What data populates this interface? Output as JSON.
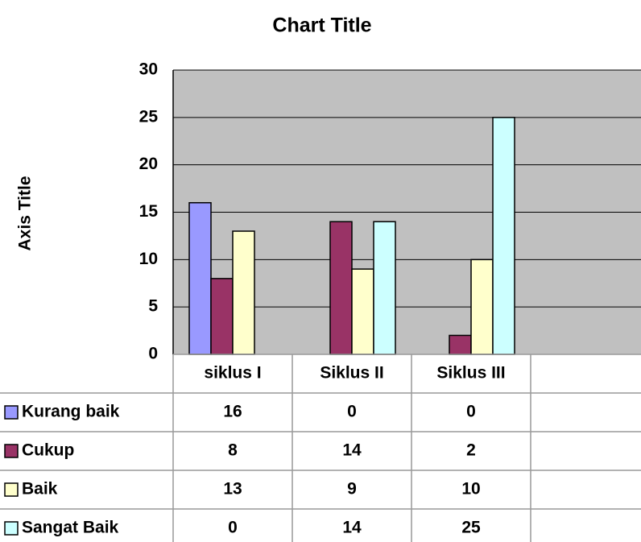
{
  "chart_data": {
    "type": "bar",
    "title": "Chart Title",
    "y_label": "Axis Title",
    "categories": [
      "siklus I",
      "Siklus II",
      "Siklus III",
      null
    ],
    "series": [
      {
        "name": "Kurang baik",
        "color": "#9999ff",
        "values": [
          16,
          0,
          0,
          null
        ]
      },
      {
        "name": "Cukup",
        "color": "#993366",
        "values": [
          8,
          14,
          2,
          null
        ]
      },
      {
        "name": "Baik",
        "color": "#ffffcc",
        "values": [
          13,
          9,
          10,
          null
        ]
      },
      {
        "name": "Sangat Baik",
        "color": "#ccffff",
        "values": [
          0,
          14,
          25,
          null
        ]
      }
    ],
    "ylim": [
      0,
      30
    ],
    "yticks": [
      0,
      5,
      10,
      15,
      20,
      25,
      30
    ],
    "grid": true,
    "plot_background": "#c0c0c0"
  }
}
